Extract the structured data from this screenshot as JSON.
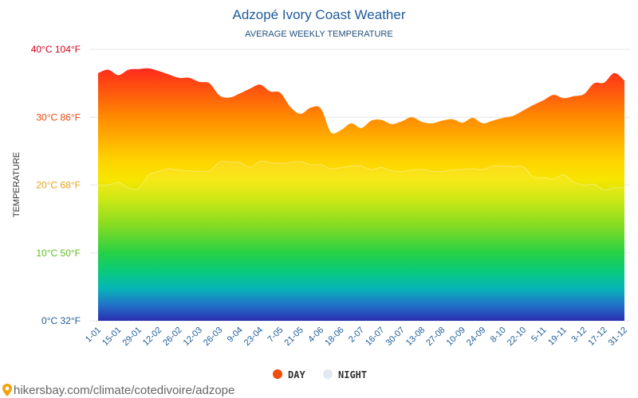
{
  "chart_data": {
    "type": "area",
    "title": "Adzopé Ivory Coast Weather",
    "subtitle": "AVERAGE WEEKLY TEMPERATURE",
    "ylabel": "TEMPERATURE",
    "ylim": [
      0,
      40
    ],
    "yticks": [
      {
        "value": 40,
        "label": "40°C 104°F",
        "color": "#d0021b"
      },
      {
        "value": 30,
        "label": "30°C 86°F",
        "color": "#e8490f"
      },
      {
        "value": 20,
        "label": "20°C 68°F",
        "color": "#e8a317"
      },
      {
        "value": 10,
        "label": "10°C 50°F",
        "color": "#5fbf1f"
      },
      {
        "value": 0,
        "label": "0°C 32°F",
        "color": "#1f5c99"
      }
    ],
    "x_labels": [
      "1-01",
      "15-01",
      "29-01",
      "12-02",
      "26-02",
      "12-03",
      "26-03",
      "9-04",
      "23-04",
      "7-05",
      "21-05",
      "4-06",
      "18-06",
      "2-07",
      "16-07",
      "30-07",
      "13-08",
      "27-08",
      "10-09",
      "24-09",
      "8-10",
      "22-10",
      "5-11",
      "19-11",
      "3-12",
      "17-12",
      "31-12"
    ],
    "series": [
      {
        "name": "DAY",
        "color": "#f04e0c",
        "values": [
          36.5,
          37.0,
          36.2,
          37.0,
          37.1,
          37.2,
          36.8,
          36.3,
          35.8,
          35.8,
          35.2,
          35.0,
          33.2,
          32.9,
          33.5,
          34.2,
          34.8,
          33.8,
          33.6,
          31.5,
          30.5,
          31.4,
          31.3,
          27.8,
          28.1,
          29.1,
          28.4,
          29.5,
          29.6,
          29.0,
          29.4,
          30.0,
          29.3,
          29.1,
          29.5,
          29.7,
          29.2,
          29.9,
          29.1,
          29.5,
          29.9,
          30.2,
          31.0,
          31.8,
          32.5,
          33.3,
          32.8,
          33.1,
          33.4,
          35.0,
          35.1,
          36.5,
          35.4
        ]
      },
      {
        "name": "NIGHT",
        "color": "#e8edf5",
        "values": [
          20.0,
          20.0,
          20.4,
          19.6,
          19.5,
          21.5,
          22.0,
          22.4,
          22.2,
          22.1,
          22.0,
          22.1,
          23.4,
          23.4,
          23.3,
          22.6,
          23.5,
          23.3,
          23.2,
          23.3,
          23.5,
          23.0,
          23.0,
          22.4,
          22.6,
          22.8,
          22.8,
          22.3,
          22.6,
          22.1,
          22.0,
          22.2,
          22.3,
          22.0,
          22.0,
          22.2,
          22.3,
          22.4,
          22.3,
          22.8,
          22.8,
          22.7,
          22.7,
          21.2,
          21.1,
          20.9,
          21.5,
          20.4,
          20.0,
          20.1,
          19.3,
          19.6,
          19.6
        ]
      }
    ]
  },
  "legend": {
    "day_label": "DAY",
    "night_label": "NIGHT",
    "day_color": "#f04e0c",
    "night_color": "#e8edf5"
  },
  "footer": {
    "credit": "hikersbay.com/climate/cotedivoire/adzope"
  }
}
